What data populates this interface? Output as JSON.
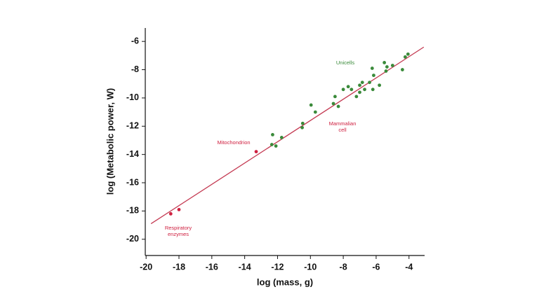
{
  "chart_data": {
    "type": "scatter",
    "xlabel": "log (mass, g)",
    "ylabel": "log (Metabolic power, W)",
    "xlim": [
      -20.05,
      -3.05
    ],
    "xticks": [
      -20,
      -18,
      -16,
      -14,
      -12,
      -10,
      -8,
      -6,
      -4
    ],
    "ylim": [
      -21.15,
      -5.05
    ],
    "yticks": [
      -20,
      -18,
      -16,
      -14,
      -12,
      -10,
      -8,
      -6
    ],
    "fit_line": {
      "color": "#c43a52",
      "x": [
        -19.7,
        -3.1
      ],
      "y": [
        -18.9,
        -6.4
      ]
    },
    "series": [
      {
        "color": "#cf2040",
        "x": [
          -18.5,
          -18.0,
          -13.3
        ],
        "y": [
          -18.2,
          -17.9,
          -13.8
        ]
      },
      {
        "color": "#3a8a3a",
        "x": [
          -12.3,
          -12.35,
          -12.1,
          -11.75,
          -10.47,
          -10.5,
          -9.96,
          -9.7,
          -8.6,
          -8.5,
          -8.3,
          -8.0,
          -7.7,
          -7.5,
          -7.2,
          -7.0,
          -7.0,
          -6.84,
          -6.7,
          -6.4,
          -6.24,
          -6.15,
          -5.8,
          -6.2,
          -5.5,
          -5.34,
          -5.4,
          -5.0,
          -4.4,
          -4.23,
          -4.06
        ],
        "y": [
          -12.6,
          -13.3,
          -13.4,
          -12.8,
          -11.8,
          -12.1,
          -10.5,
          -11.0,
          -10.4,
          -9.9,
          -10.6,
          -9.4,
          -9.2,
          -9.4,
          -9.9,
          -9.1,
          -9.6,
          -8.9,
          -9.4,
          -8.9,
          -7.9,
          -8.4,
          -9.1,
          -9.4,
          -7.5,
          -7.8,
          -8.1,
          -7.7,
          -8.0,
          -7.1,
          -6.9
        ]
      }
    ],
    "annotations": [
      {
        "color": "#3a8a3a",
        "lines": [
          "Unicells"
        ]
      },
      {
        "color": "#cf2040",
        "lines": [
          "Mammalian",
          "cell"
        ]
      },
      {
        "color": "#cf2040",
        "lines": [
          "Mitochondrion"
        ]
      },
      {
        "color": "#cf2040",
        "lines": [
          "Respiratory",
          "enzymes"
        ]
      }
    ]
  }
}
